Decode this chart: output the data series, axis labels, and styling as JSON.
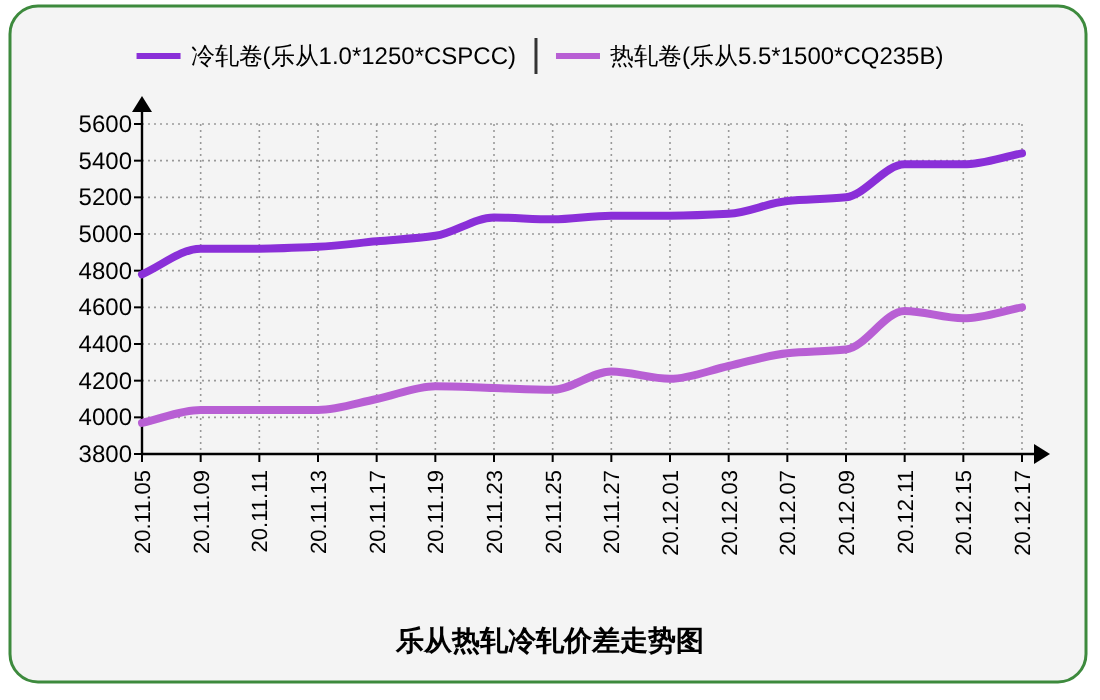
{
  "chart_data": {
    "type": "line",
    "title": "乐从热轧冷轧价差走势图",
    "categories": [
      "20.11.05",
      "20.11.09",
      "20.11.11",
      "20.11.13",
      "20.11.17",
      "20.11.19",
      "20.11.23",
      "20.11.25",
      "20.11.27",
      "20.12.01",
      "20.12.03",
      "20.12.07",
      "20.12.09",
      "20.12.11",
      "20.12.15",
      "20.12.17"
    ],
    "series": [
      {
        "name": "冷轧卷(乐从1.0*1250*CSPCC)",
        "color": "#8a2fd8",
        "values": [
          4780,
          4920,
          4920,
          4930,
          4960,
          4990,
          5090,
          5080,
          5100,
          5100,
          5110,
          5180,
          5200,
          5380,
          5380,
          5440
        ]
      },
      {
        "name": "热轧卷(乐从5.5*1500*CQ235B)",
        "color": "#b85fd4",
        "values": [
          3970,
          4040,
          4040,
          4040,
          4100,
          4170,
          4160,
          4150,
          4250,
          4210,
          4280,
          4350,
          4370,
          4580,
          4540,
          4600
        ]
      }
    ],
    "ylim": [
      3800,
      5600
    ],
    "yticks": [
      3800,
      4000,
      4200,
      4400,
      4600,
      4800,
      5000,
      5200,
      5400,
      5600
    ],
    "grid": true,
    "legend": "top"
  }
}
